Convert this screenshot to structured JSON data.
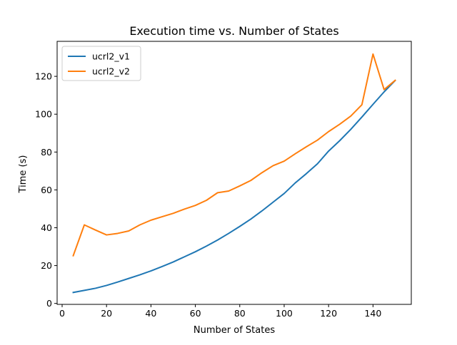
{
  "chart_data": {
    "type": "line",
    "title": "Execution time vs. Number of States",
    "xlabel": "Number of States",
    "ylabel": "Time (s)",
    "xlim": [
      -2.25,
      157.25
    ],
    "ylim": [
      -0.5,
      138.5
    ],
    "xticks": [
      0,
      20,
      40,
      60,
      80,
      100,
      120,
      140
    ],
    "yticks": [
      0,
      20,
      40,
      60,
      80,
      100,
      120
    ],
    "grid": false,
    "legend_position": "upper-left",
    "x": [
      5,
      10,
      15,
      20,
      25,
      30,
      35,
      40,
      45,
      50,
      55,
      60,
      65,
      70,
      75,
      80,
      85,
      90,
      95,
      100,
      105,
      110,
      115,
      120,
      125,
      130,
      135,
      140,
      145,
      150
    ],
    "series": [
      {
        "name": "ucrl2_v1",
        "color": "#1f77b4",
        "values": [
          5.8,
          6.9,
          8.0,
          9.5,
          11.3,
          13.2,
          15.1,
          17.2,
          19.5,
          21.9,
          24.6,
          27.3,
          30.3,
          33.5,
          37.0,
          40.7,
          44.6,
          48.9,
          53.5,
          58.1,
          63.7,
          68.6,
          73.8,
          80.5,
          86.0,
          92.0,
          98.5,
          105.2,
          111.8,
          117.8
        ]
      },
      {
        "name": "ucrl2_v2",
        "color": "#ff7f0e",
        "values": [
          25.2,
          41.5,
          38.8,
          36.2,
          37.0,
          38.3,
          41.5,
          44.0,
          45.8,
          47.6,
          49.8,
          51.8,
          54.5,
          58.5,
          59.4,
          62.1,
          65.0,
          69.1,
          72.8,
          75.2,
          79.1,
          82.8,
          86.3,
          90.8,
          94.7,
          99.0,
          105.0,
          131.8,
          113.0,
          117.9
        ]
      }
    ]
  }
}
